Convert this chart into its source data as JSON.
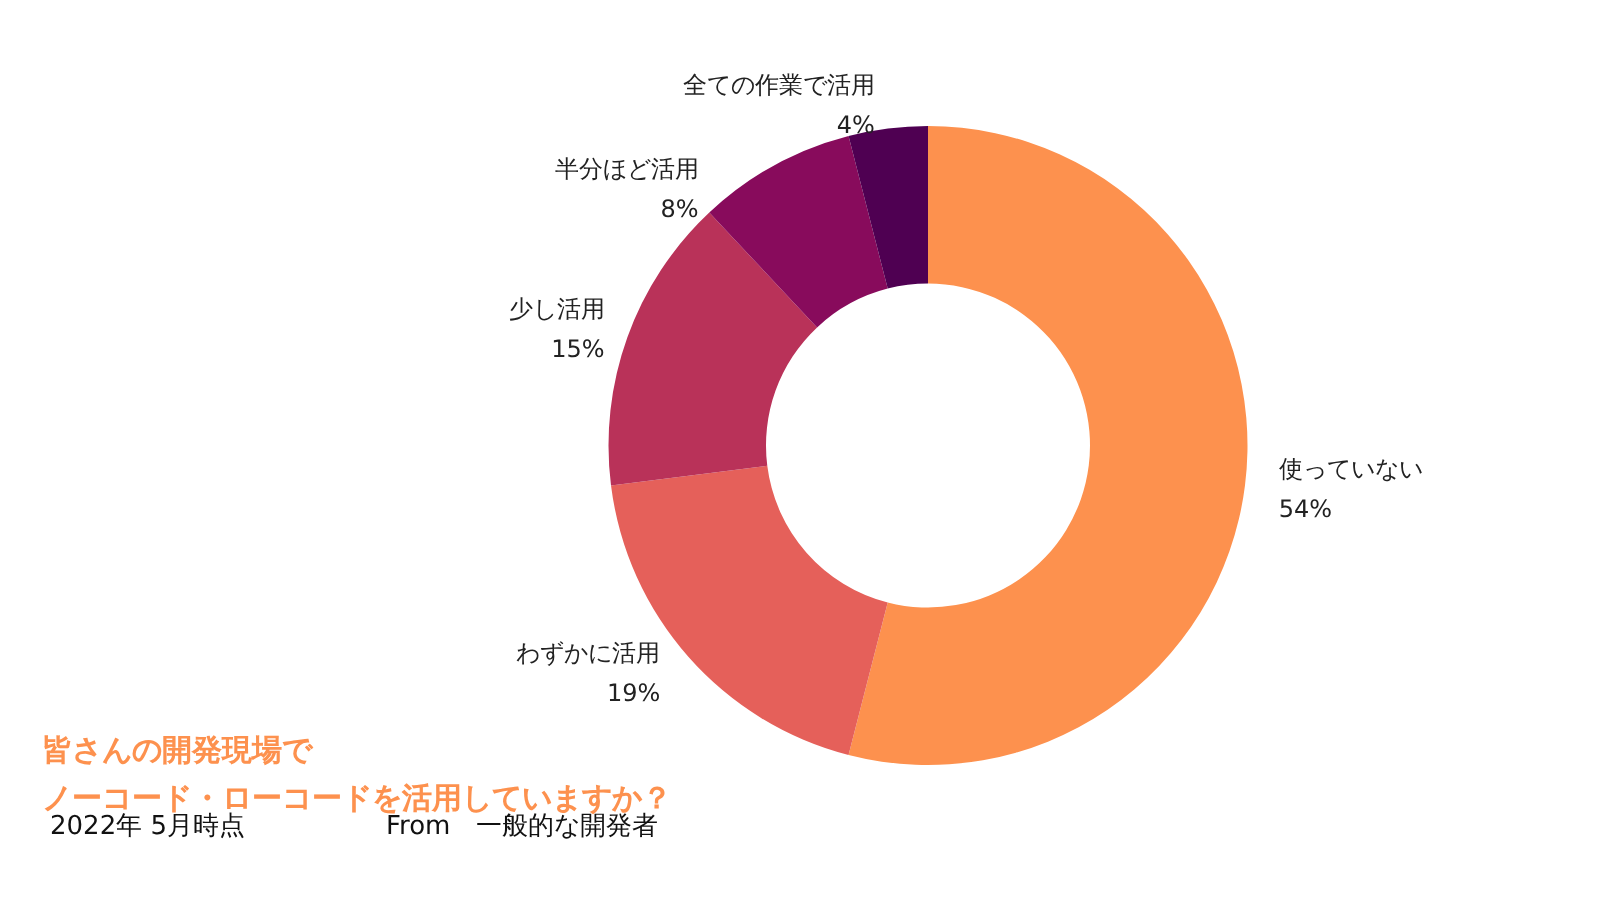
{
  "chart_data": {
    "type": "donut",
    "title": "皆さんの開発現場で",
    "subtitle": "ノーコード・ローコードを活用していますか？",
    "categories": [
      "使っていない",
      "わずかに活用",
      "少し活用",
      "半分ほど活用",
      "全ての作業で活用"
    ],
    "values": [
      54,
      19,
      15,
      8,
      4
    ],
    "value_labels": [
      "54%",
      "19%",
      "15%",
      "8%",
      "4%"
    ],
    "colors": [
      "#fd914e",
      "#e5605a",
      "#b93259",
      "#880b5c",
      "#4f0052"
    ],
    "annotations": [
      "2022年 5月時点",
      "From　一般的な開発者"
    ],
    "legend": false
  }
}
